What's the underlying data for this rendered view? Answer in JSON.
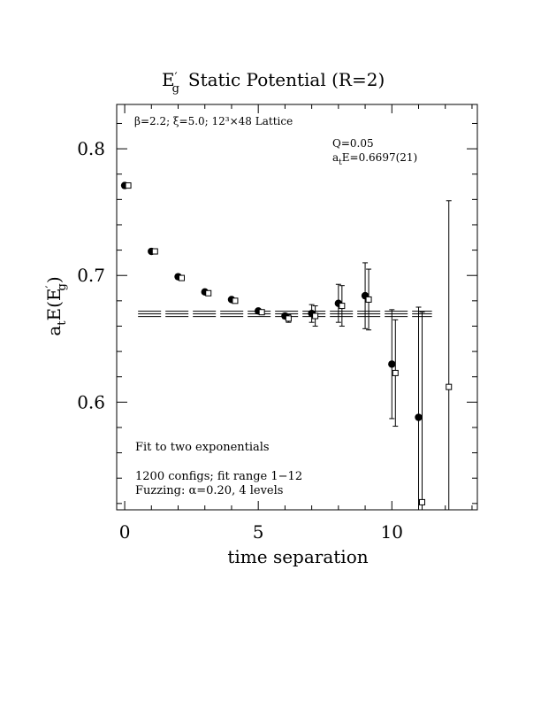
{
  "chart_data": {
    "type": "scatter",
    "title": {
      "main": "E",
      "prime": "′",
      "sub": "g",
      "rest": "Static Potential (R=2)"
    },
    "xlabel": "time separation",
    "ylabel": {
      "pre": "a",
      "pre_sub": "t",
      "mid": "E(E",
      "prime": "′",
      "sub": "g",
      "post": ")"
    },
    "xlim": [
      -0.3,
      13.2
    ],
    "ylim": [
      0.515,
      0.835
    ],
    "xticks": [
      0,
      5,
      10
    ],
    "xtick_labels": [
      "0",
      "5",
      "10"
    ],
    "yticks": [
      0.6,
      0.7,
      0.8
    ],
    "ytick_labels": [
      "0.6",
      "0.7",
      "0.8"
    ],
    "grid": false,
    "series": [
      {
        "marker": "filled-circle",
        "points": [
          {
            "x": 0,
            "y": 0.771,
            "err": 0
          },
          {
            "x": 1,
            "y": 0.719,
            "err": 0
          },
          {
            "x": 2,
            "y": 0.699,
            "err": 0
          },
          {
            "x": 3,
            "y": 0.687,
            "err": 0
          },
          {
            "x": 4,
            "y": 0.681,
            "err": 0
          },
          {
            "x": 5,
            "y": 0.672,
            "err": 0
          },
          {
            "x": 6,
            "y": 0.668,
            "err": 0.002
          },
          {
            "x": 7,
            "y": 0.67,
            "err": 0.007
          },
          {
            "x": 8,
            "y": 0.678,
            "err": 0.015
          },
          {
            "x": 9,
            "y": 0.684,
            "err": 0.026
          },
          {
            "x": 10,
            "y": 0.63,
            "err": 0.043
          },
          {
            "x": 11,
            "y": 0.588,
            "err": 0.087
          }
        ]
      },
      {
        "marker": "open-square",
        "points": [
          {
            "x": 0,
            "y": 0.771,
            "err": 0
          },
          {
            "x": 1,
            "y": 0.719,
            "err": 0
          },
          {
            "x": 2,
            "y": 0.698,
            "err": 0
          },
          {
            "x": 3,
            "y": 0.686,
            "err": 0
          },
          {
            "x": 4,
            "y": 0.68,
            "err": 0
          },
          {
            "x": 5,
            "y": 0.671,
            "err": 0
          },
          {
            "x": 6,
            "y": 0.666,
            "err": 0.003
          },
          {
            "x": 7,
            "y": 0.668,
            "err": 0.008
          },
          {
            "x": 8,
            "y": 0.676,
            "err": 0.016
          },
          {
            "x": 9,
            "y": 0.681,
            "err": 0.024
          },
          {
            "x": 10,
            "y": 0.623,
            "err": 0.042
          },
          {
            "x": 11,
            "y": 0.521,
            "err": 0.15
          },
          {
            "x": 12,
            "y": 0.612,
            "err": 0.147
          }
        ]
      }
    ],
    "fit": {
      "value": 0.6697,
      "error": 0.0021,
      "x_range": [
        0.5,
        11.5
      ]
    },
    "annotations": {
      "lattice": "β=2.2; ξ=5.0; 12³×48 Lattice",
      "q": "Q=0.05",
      "energy_pre": "a",
      "energy_sub": "t",
      "energy_post": "E=0.6697(21)",
      "fit_desc": "Fit to two exponentials",
      "configs": "1200 configs; fit range 1−12",
      "fuzzing": "Fuzzing: α=0.20, 4 levels"
    }
  }
}
